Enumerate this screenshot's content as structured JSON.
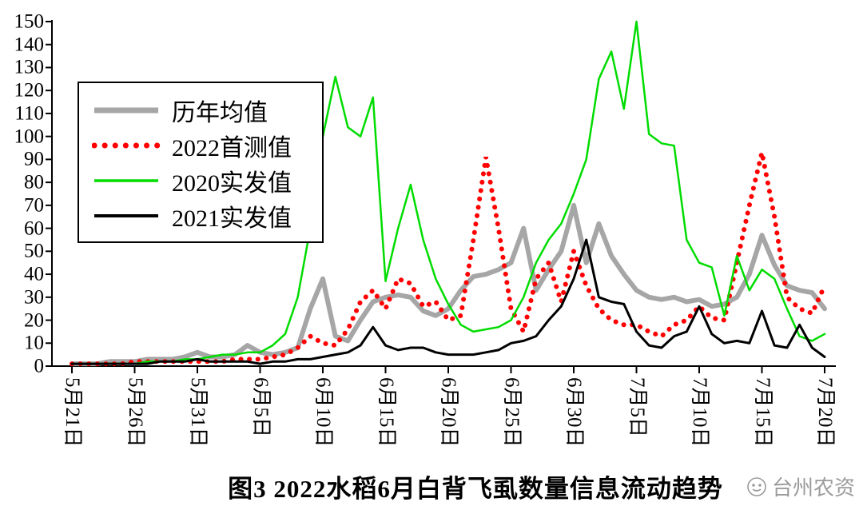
{
  "title": "图3  2022水稻6月白背飞虱数量信息流动趋势",
  "watermark": {
    "text": "台州农资",
    "color": "#9b9b9b"
  },
  "axis_color": "#000000",
  "chart_data": {
    "type": "line",
    "title": "图3  2022水稻6月白背飞虱数量信息流动趋势",
    "xlabel": "",
    "ylabel": "",
    "ylim": [
      0,
      150
    ],
    "grid": false,
    "legend_position": "upper-left-inside",
    "y_ticks": [
      0,
      10,
      20,
      30,
      40,
      50,
      60,
      70,
      80,
      90,
      100,
      110,
      120,
      130,
      140,
      150
    ],
    "x_tick_labels": [
      "5月21日",
      "5月26日",
      "5月31日",
      "6月5日",
      "6月10日",
      "6月15日",
      "6月20日",
      "6月25日",
      "6月30日",
      "7月5日",
      "7月10日",
      "7月15日",
      "7月20日"
    ],
    "x_tick_indices": [
      0,
      5,
      10,
      15,
      20,
      25,
      30,
      35,
      40,
      45,
      50,
      55,
      60
    ],
    "categories": [
      "5月21日",
      "5月22日",
      "5月23日",
      "5月24日",
      "5月25日",
      "5月26日",
      "5月27日",
      "5月28日",
      "5月29日",
      "5月30日",
      "5月31日",
      "6月1日",
      "6月2日",
      "6月3日",
      "6月4日",
      "6月5日",
      "6月6日",
      "6月7日",
      "6月8日",
      "6月9日",
      "6月10日",
      "6月11日",
      "6月12日",
      "6月13日",
      "6月14日",
      "6月15日",
      "6月16日",
      "6月17日",
      "6月18日",
      "6月19日",
      "6月20日",
      "6月21日",
      "6月22日",
      "6月23日",
      "6月24日",
      "6月25日",
      "6月26日",
      "6月27日",
      "6月28日",
      "6月29日",
      "6月30日",
      "7月1日",
      "7月2日",
      "7月3日",
      "7月4日",
      "7月5日",
      "7月6日",
      "7月7日",
      "7月8日",
      "7月9日",
      "7月10日",
      "7月11日",
      "7月12日",
      "7月13日",
      "7月14日",
      "7月15日",
      "7月16日",
      "7月17日",
      "7月18日",
      "7月19日",
      "7月20日"
    ],
    "series": [
      {
        "name": "历年均值",
        "color": "#A6A6A6",
        "style": "solid",
        "width": 6,
        "values": [
          1,
          1,
          1,
          2,
          2,
          2,
          3,
          3,
          3,
          4,
          6,
          4,
          4,
          5,
          9,
          6,
          5,
          6,
          8,
          25,
          38,
          13,
          11,
          20,
          28,
          30,
          31,
          30,
          24,
          22,
          25,
          33,
          39,
          40,
          42,
          45,
          60,
          33,
          42,
          50,
          70,
          45,
          62,
          48,
          40,
          33,
          30,
          29,
          30,
          28,
          29,
          26,
          27,
          30,
          40,
          57,
          44,
          35,
          33,
          32,
          25
        ]
      },
      {
        "name": "2022首测值",
        "color": "#FF0000",
        "style": "dotted",
        "width": 6,
        "values": [
          1,
          1,
          1,
          1,
          1,
          2,
          2,
          2,
          2,
          2,
          2,
          2,
          2,
          3,
          3,
          3,
          4,
          5,
          8,
          13,
          10,
          9,
          16,
          28,
          33,
          25,
          38,
          36,
          26,
          28,
          20,
          22,
          55,
          91,
          60,
          25,
          15,
          38,
          45,
          28,
          50,
          35,
          25,
          20,
          18,
          18,
          15,
          13,
          18,
          20,
          26,
          21,
          20,
          45,
          70,
          93,
          65,
          30,
          25,
          23,
          35
        ]
      },
      {
        "name": "2020实发值",
        "color": "#00DC00",
        "style": "solid",
        "width": 2.5,
        "values": [
          1,
          1,
          1,
          1,
          1,
          1,
          2,
          2,
          2,
          3,
          3,
          4,
          5,
          5,
          6,
          6,
          9,
          14,
          30,
          60,
          100,
          126,
          104,
          100,
          117,
          37,
          60,
          79,
          55,
          38,
          27,
          18,
          15,
          16,
          17,
          20,
          30,
          45,
          55,
          62,
          75,
          90,
          125,
          137,
          112,
          150,
          101,
          97,
          96,
          55,
          45,
          43,
          22,
          48,
          33,
          42,
          38,
          25,
          13,
          11,
          14
        ]
      },
      {
        "name": "2021实发值",
        "color": "#000000",
        "style": "solid",
        "width": 3,
        "values": [
          1,
          1,
          1,
          1,
          1,
          1,
          1,
          2,
          2,
          2,
          3,
          2,
          2,
          2,
          2,
          1,
          2,
          2,
          3,
          3,
          4,
          5,
          6,
          9,
          17,
          9,
          7,
          8,
          8,
          6,
          5,
          5,
          5,
          6,
          7,
          10,
          11,
          13,
          20,
          26,
          38,
          55,
          30,
          28,
          27,
          15,
          9,
          8,
          13,
          15,
          26,
          14,
          10,
          11,
          10,
          24,
          9,
          8,
          18,
          8,
          4
        ]
      }
    ]
  }
}
